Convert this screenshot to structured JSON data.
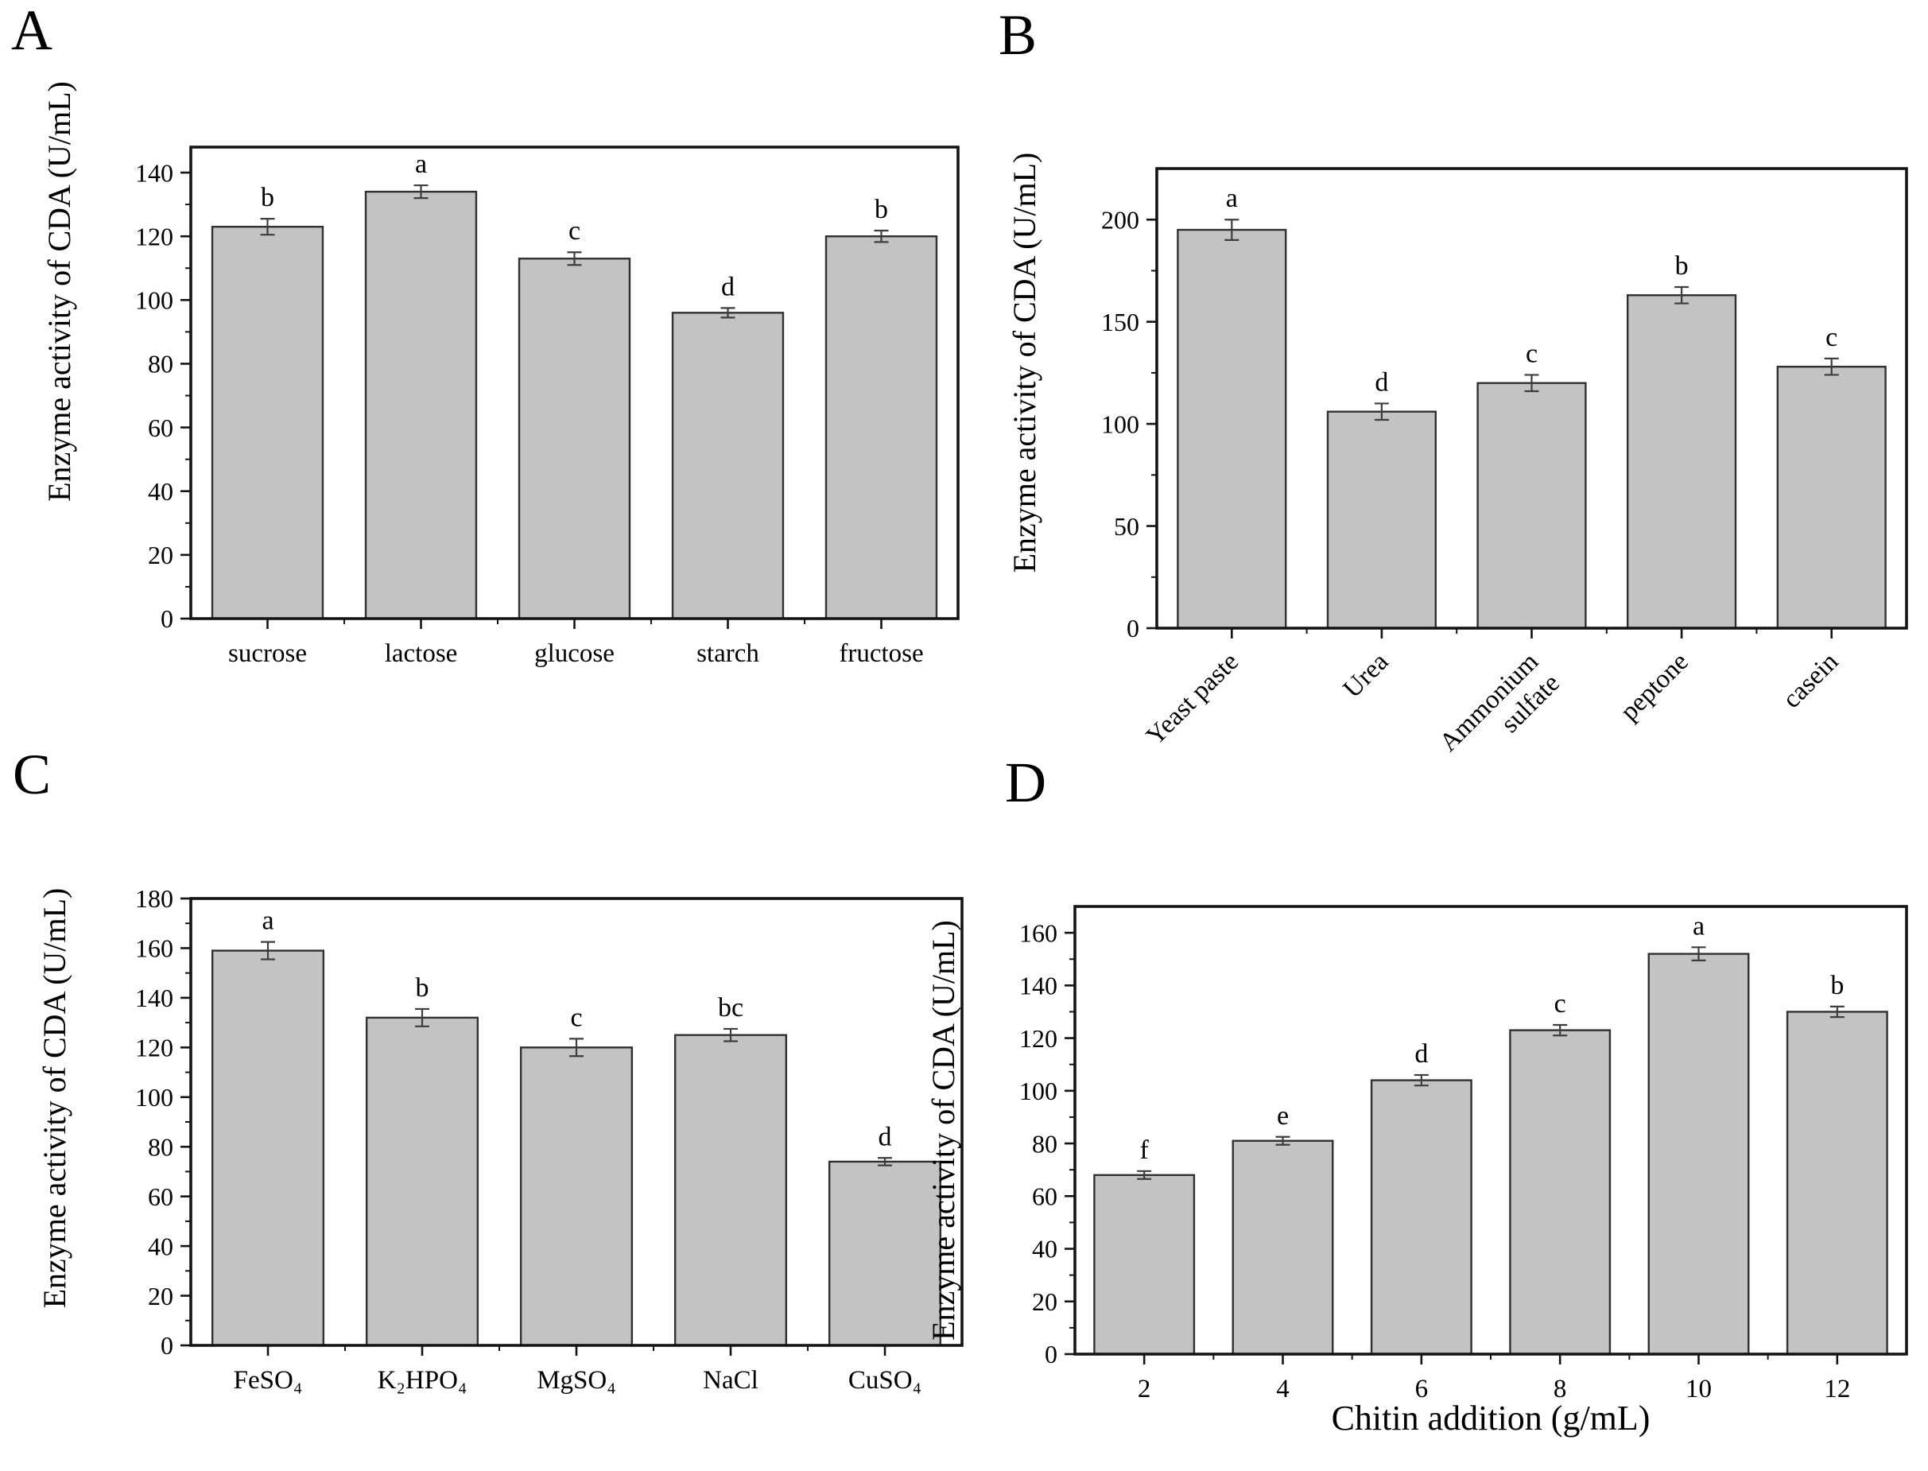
{
  "figure": {
    "background": "#ffffff",
    "bar_fill": "#c3c3c3",
    "bar_edge": "#303030",
    "error_color": "#3d3d3d",
    "axis_color": "#141414",
    "text_color": "#000000",
    "panels": [
      {
        "letter": "A"
      },
      {
        "letter": "B"
      },
      {
        "letter": "C"
      },
      {
        "letter": "D"
      }
    ]
  },
  "chart_data": [
    {
      "panel": "A",
      "type": "bar",
      "ylabel": "Enzyme activity of CDA (U/mL)",
      "xlabel": "",
      "categories": [
        "sucrose",
        "lactose",
        "glucose",
        "starch",
        "fructose"
      ],
      "values": [
        123,
        134,
        113,
        96,
        120
      ],
      "errors": [
        2.5,
        2,
        2,
        1.5,
        1.8
      ],
      "sig_letters": [
        "b",
        "a",
        "c",
        "d",
        "b"
      ],
      "ylim": [
        0,
        148
      ],
      "y_tick_max": 140,
      "y_major": 20,
      "y_minor": 10,
      "label_rotation": 0,
      "grid": false
    },
    {
      "panel": "B",
      "type": "bar",
      "ylabel": "Enzyme activity of CDA (U/mL)",
      "xlabel": "",
      "categories": [
        "Yeast paste",
        "Urea",
        "Ammonium\nsulfate",
        "peptone",
        "casein"
      ],
      "values": [
        195,
        106,
        120,
        163,
        128
      ],
      "errors": [
        5,
        4,
        4,
        4,
        4
      ],
      "sig_letters": [
        "a",
        "d",
        "c",
        "b",
        "c"
      ],
      "ylim": [
        0,
        225
      ],
      "y_tick_max": 200,
      "y_major": 50,
      "y_minor": 25,
      "label_rotation": -45,
      "grid": false
    },
    {
      "panel": "C",
      "type": "bar",
      "ylabel": "Enzyme activity of CDA (U/mL)",
      "xlabel": "",
      "categories": [
        "FeSO₄",
        "K₂HPO₄",
        "MgSO₄",
        "NaCl",
        "CuSO₄"
      ],
      "values": [
        159,
        132,
        120,
        125,
        74
      ],
      "errors": [
        3.5,
        3.5,
        3.5,
        2.5,
        1.5
      ],
      "sig_letters": [
        "a",
        "b",
        "c",
        "bc",
        "d"
      ],
      "ylim": [
        0,
        180
      ],
      "y_tick_max": 180,
      "y_major": 20,
      "y_minor": 10,
      "label_rotation": 0,
      "grid": false
    },
    {
      "panel": "D",
      "type": "bar",
      "ylabel": "Enzyme activity of CDA (U/mL)",
      "xlabel": "Chitin addition (g/mL)",
      "categories": [
        "2",
        "4",
        "6",
        "8",
        "10",
        "12"
      ],
      "values": [
        68,
        81,
        104,
        123,
        152,
        130
      ],
      "errors": [
        1.5,
        1.5,
        2,
        2,
        2.5,
        2
      ],
      "sig_letters": [
        "f",
        "e",
        "d",
        "c",
        "a",
        "b"
      ],
      "ylim": [
        0,
        170
      ],
      "y_tick_max": 160,
      "y_major": 20,
      "y_minor": 10,
      "label_rotation": 0,
      "grid": false
    }
  ]
}
